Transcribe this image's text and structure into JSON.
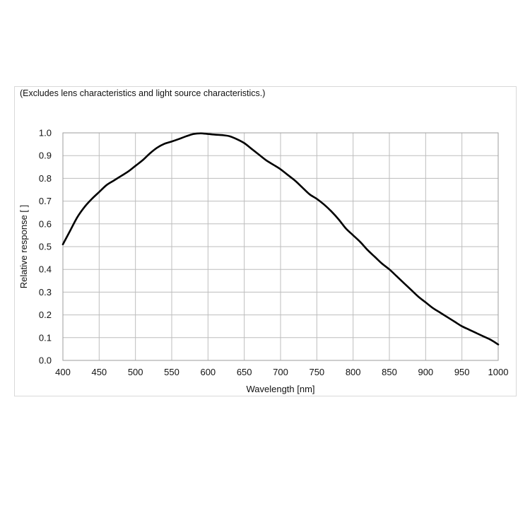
{
  "chart_data": {
    "type": "line",
    "title": "(Excludes lens characteristics and light source characteristics.)",
    "xlabel": "Wavelength [nm]",
    "ylabel": "Relative response [ ]",
    "xlim": [
      400,
      1000
    ],
    "ylim": [
      0.0,
      1.0
    ],
    "xticks": [
      "400",
      "450",
      "500",
      "550",
      "600",
      "650",
      "700",
      "750",
      "800",
      "850",
      "900",
      "950",
      "1000"
    ],
    "yticks": [
      "0.0",
      "0.1",
      "0.2",
      "0.3",
      "0.4",
      "0.5",
      "0.6",
      "0.7",
      "0.8",
      "0.9",
      "1.0"
    ],
    "grid": true,
    "series": [
      {
        "color": "#000000",
        "x": [
          400,
          410,
          420,
          430,
          440,
          450,
          460,
          470,
          480,
          490,
          500,
          510,
          520,
          530,
          540,
          550,
          560,
          570,
          580,
          590,
          600,
          610,
          620,
          630,
          640,
          650,
          660,
          670,
          680,
          690,
          700,
          710,
          720,
          730,
          740,
          750,
          760,
          770,
          780,
          790,
          800,
          810,
          820,
          830,
          840,
          850,
          860,
          870,
          880,
          890,
          900,
          910,
          920,
          930,
          940,
          950,
          960,
          970,
          980,
          990,
          1000
        ],
        "y": [
          0.51,
          0.57,
          0.63,
          0.675,
          0.71,
          0.74,
          0.77,
          0.79,
          0.81,
          0.83,
          0.855,
          0.88,
          0.91,
          0.935,
          0.952,
          0.962,
          0.973,
          0.985,
          0.995,
          0.998,
          0.995,
          0.992,
          0.99,
          0.985,
          0.972,
          0.955,
          0.93,
          0.905,
          0.88,
          0.86,
          0.84,
          0.815,
          0.79,
          0.76,
          0.73,
          0.71,
          0.685,
          0.655,
          0.62,
          0.58,
          0.55,
          0.52,
          0.485,
          0.455,
          0.425,
          0.4,
          0.37,
          0.34,
          0.31,
          0.28,
          0.255,
          0.23,
          0.21,
          0.19,
          0.17,
          0.15,
          0.135,
          0.12,
          0.105,
          0.09,
          0.07
        ]
      }
    ]
  }
}
